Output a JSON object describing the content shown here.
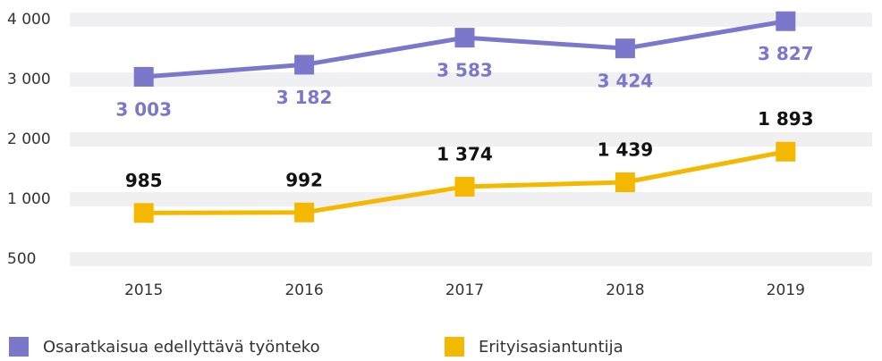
{
  "chart_data": {
    "type": "line",
    "categories": [
      "2015",
      "2016",
      "2017",
      "2018",
      "2019"
    ],
    "series": [
      {
        "name": "Osaratkaisua edellyttävä työnteko",
        "color": "#7b78cc",
        "values": [
          3003,
          3182,
          3583,
          3424,
          3827
        ],
        "value_labels": [
          "3 003",
          "3 182",
          "3 583",
          "3 424",
          "3 827"
        ]
      },
      {
        "name": "Erityisasiantuntija",
        "color": "#f5b800",
        "values": [
          985,
          992,
          1374,
          1439,
          1893
        ],
        "value_labels": [
          "985",
          "992",
          "1 374",
          "1 439",
          "1 893"
        ]
      }
    ],
    "ylim": [
      300,
      3850
    ],
    "yticks": [
      {
        "value": 500,
        "label": "500"
      },
      {
        "value": 1000,
        "label": "1 000"
      },
      {
        "value": 2000,
        "label": "2 000"
      },
      {
        "value": 3000,
        "label": "3 000"
      },
      {
        "value": 4000,
        "label": "4 000"
      }
    ],
    "grid": true
  }
}
